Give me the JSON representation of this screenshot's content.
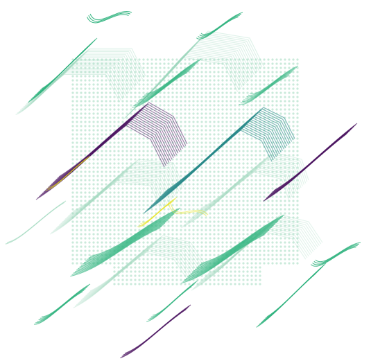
{
  "artwork": {
    "background": "#ffffff",
    "palette": {
      "purple": "#4b1460",
      "teal": "#2a8a8a",
      "green": "#2db27d",
      "mint": "#9fd8bd",
      "yellow": "#e7e419"
    }
  }
}
